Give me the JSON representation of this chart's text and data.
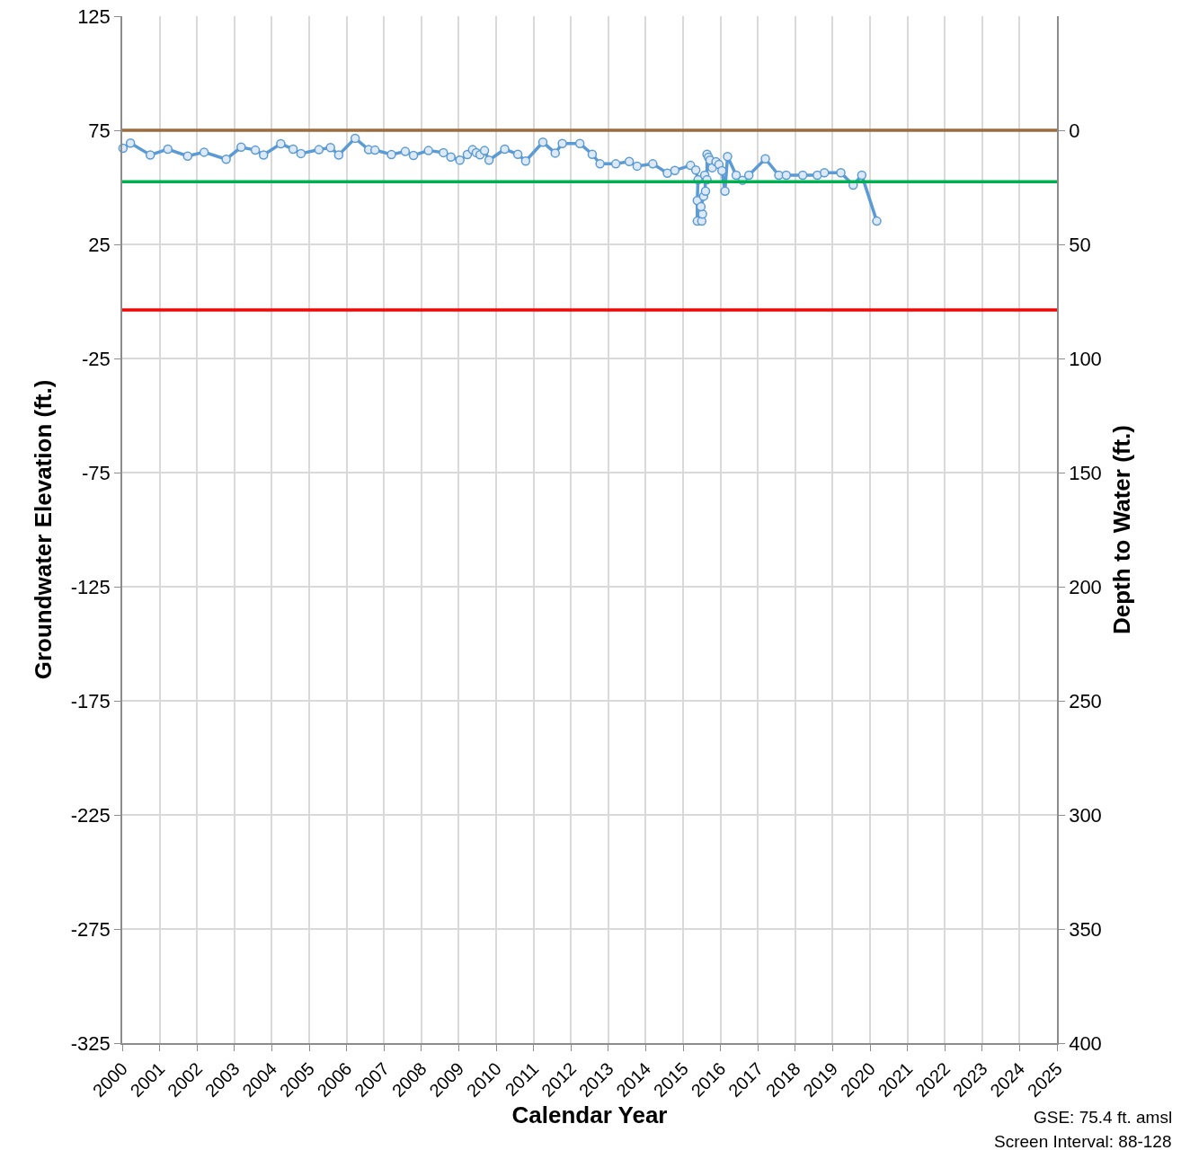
{
  "chart_data": {
    "type": "line",
    "xlabel": "Calendar Year",
    "ylabel": "Groundwater Elevation (ft.)",
    "y2label": "Depth to Water (ft.)",
    "annotations": [
      "GSE: 75.4 ft. amsl",
      "Screen Interval: 88-128"
    ],
    "x": [
      2000.02,
      2000.22,
      2000.75,
      2001.22,
      2001.75,
      2002.19,
      2002.78,
      2003.18,
      2003.56,
      2003.78,
      2004.24,
      2004.57,
      2004.78,
      2005.26,
      2005.57,
      2005.79,
      2006.23,
      2006.59,
      2006.76,
      2007.2,
      2007.57,
      2007.79,
      2008.19,
      2008.59,
      2008.79,
      2009.03,
      2009.23,
      2009.37,
      2009.47,
      2009.57,
      2009.69,
      2009.81,
      2010.23,
      2010.58,
      2010.79,
      2011.25,
      2011.58,
      2011.77,
      2012.24,
      2012.57,
      2012.78,
      2013.2,
      2013.56,
      2013.77,
      2014.19,
      2014.58,
      2014.78,
      2015.2,
      2015.34,
      2015.4,
      2015.38,
      2015.38,
      2015.5,
      2015.52,
      2015.48,
      2015.55,
      2015.6,
      2015.58,
      2015.64,
      2015.64,
      2015.68,
      2015.72,
      2015.78,
      2015.88,
      2015.96,
      2016.04,
      2016.12,
      2016.19,
      2016.42,
      2016.59,
      2016.76,
      2017.2,
      2017.56,
      2017.76,
      2018.2,
      2018.59,
      2018.78,
      2019.22,
      2019.55,
      2019.78,
      2020.18
    ],
    "series": [
      {
        "color": "#5b9bd5",
        "values": [
          67.1,
          69.4,
          64.2,
          66.7,
          63.7,
          65.4,
          62.3,
          67.6,
          66.3,
          64.2,
          69.1,
          66.7,
          64.8,
          66.5,
          67.4,
          64.2,
          71.5,
          66.5,
          66.3,
          64.4,
          65.7,
          64.0,
          66.1,
          65.2,
          63.3,
          61.9,
          64.4,
          66.5,
          65.2,
          64.3,
          66.1,
          61.9,
          66.7,
          64.5,
          61.5,
          69.8,
          65.0,
          69.2,
          69.2,
          64.5,
          60.3,
          60.3,
          61.3,
          59.3,
          60.3,
          56.2,
          57.4,
          59.6,
          57.6,
          53.3,
          44.2,
          35.2,
          35.2,
          38.3,
          41.5,
          46.1,
          48.3,
          55.3,
          53.3,
          64.5,
          63.2,
          61.9,
          58.6,
          61.2,
          60.0,
          57.3,
          48.3,
          63.5,
          55.3,
          53.1,
          55.3,
          62.5,
          55.3,
          55.3,
          55.3,
          55.3,
          56.4,
          56.4,
          51.0,
          55.3,
          35.2
        ]
      }
    ],
    "xlim": [
      2000,
      2025
    ],
    "xticks": [
      2000,
      2001,
      2002,
      2003,
      2004,
      2005,
      2006,
      2007,
      2008,
      2009,
      2010,
      2011,
      2012,
      2013,
      2014,
      2015,
      2016,
      2017,
      2018,
      2019,
      2020,
      2021,
      2022,
      2023,
      2024,
      2025
    ],
    "ylim": [
      -325,
      125
    ],
    "yticks": [
      -325,
      -275,
      -225,
      -175,
      -125,
      -75,
      -25,
      25,
      75,
      125
    ],
    "y2lim": [
      400,
      -50
    ],
    "y2ticks": [
      0,
      50,
      100,
      150,
      200,
      250,
      300,
      350,
      400
    ],
    "ref_lines": [
      {
        "axis": "y",
        "value": 75,
        "color": "#9e6b3b"
      },
      {
        "axis": "y",
        "value": 52.5,
        "color": "#00b050"
      },
      {
        "axis": "y",
        "value": -3.75,
        "color": "#ff0000"
      }
    ],
    "grid": true,
    "marker": "circle",
    "line_style": "solid"
  }
}
